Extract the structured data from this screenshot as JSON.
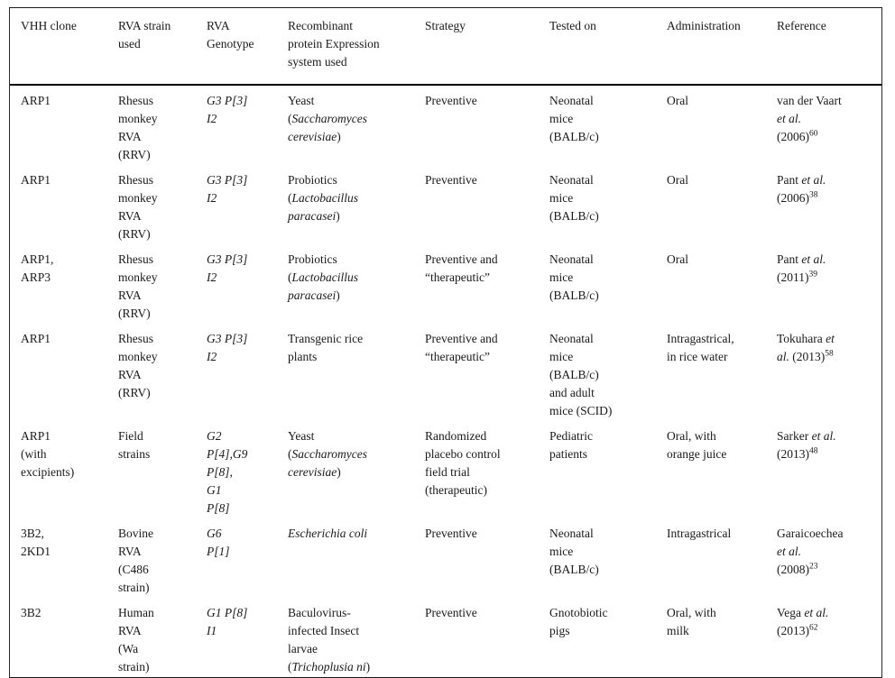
{
  "table": {
    "columns": [
      "VHH clone",
      "RVA strain\nused",
      "RVA\nGenotype",
      "Recombinant\nprotein Expression\nsystem used",
      "Strategy",
      "Tested on",
      "Administration",
      "Reference"
    ],
    "rows": [
      {
        "cells": [
          [
            "ARP1"
          ],
          [
            "Rhesus\nmonkey\nRVA\n(RRV)"
          ],
          [
            {
              "i": "G3 P[3]\nI2"
            }
          ],
          [
            "Yeast\n(",
            {
              "i": "Saccharomyces\ncerevisiae"
            },
            ")"
          ],
          [
            "Preventive"
          ],
          [
            "Neonatal\nmice\n(BALB/c)"
          ],
          [
            "Oral"
          ],
          [
            "van der Vaart\n",
            {
              "i": "et al."
            },
            "\n(2006)",
            {
              "s": "60"
            }
          ]
        ]
      },
      {
        "cells": [
          [
            "ARP1"
          ],
          [
            "Rhesus\nmonkey\nRVA\n(RRV)"
          ],
          [
            {
              "i": "G3 P[3]\nI2"
            }
          ],
          [
            "Probiotics\n(",
            {
              "i": "Lactobacillus\nparacasei"
            },
            ")"
          ],
          [
            "Preventive"
          ],
          [
            "Neonatal\nmice\n(BALB/c)"
          ],
          [
            "Oral"
          ],
          [
            "Pant ",
            {
              "i": "et al."
            },
            "\n(2006)",
            {
              "s": "38"
            }
          ]
        ]
      },
      {
        "cells": [
          [
            "ARP1,\nARP3"
          ],
          [
            "Rhesus\nmonkey\nRVA\n(RRV)"
          ],
          [
            {
              "i": "G3 P[3]\nI2"
            }
          ],
          [
            "Probiotics\n(",
            {
              "i": "Lactobacillus\nparacasei"
            },
            ")"
          ],
          [
            "Preventive and\n“therapeutic”"
          ],
          [
            "Neonatal\nmice\n(BALB/c)"
          ],
          [
            "Oral"
          ],
          [
            "Pant ",
            {
              "i": "et al."
            },
            "\n(2011)",
            {
              "s": "39"
            }
          ]
        ]
      },
      {
        "cells": [
          [
            "ARP1"
          ],
          [
            "Rhesus\nmonkey\nRVA\n(RRV)"
          ],
          [
            {
              "i": "G3 P[3]\nI2"
            }
          ],
          [
            "Transgenic rice\nplants"
          ],
          [
            "Preventive and\n“therapeutic”"
          ],
          [
            "Neonatal\nmice\n(BALB/c)\nand adult\nmice (SCID)"
          ],
          [
            "Intragastrical,\nin rice water"
          ],
          [
            "Tokuhara ",
            {
              "i": "et\nal."
            },
            " (2013)",
            {
              "s": "58"
            }
          ]
        ]
      },
      {
        "cells": [
          [
            "ARP1\n(with\nexcipients)"
          ],
          [
            "Field\nstrains"
          ],
          [
            {
              "i": "G2\nP[4],G9\nP[8],\nG1\nP[8]"
            }
          ],
          [
            "Yeast\n(",
            {
              "i": "Saccharomyces\ncerevisiae"
            },
            ")"
          ],
          [
            "Randomized\nplacebo control\nfield trial\n(therapeutic)"
          ],
          [
            "Pediatric\npatients"
          ],
          [
            "Oral, with\norange juice"
          ],
          [
            "Sarker ",
            {
              "i": "et al."
            },
            "\n(2013)",
            {
              "s": "48"
            }
          ]
        ]
      },
      {
        "cells": [
          [
            "3B2,\n2KD1"
          ],
          [
            "Bovine\nRVA\n(C486\nstrain)"
          ],
          [
            {
              "i": "G6\nP[1]"
            }
          ],
          [
            {
              "i": "Escherichia coli"
            }
          ],
          [
            "Preventive"
          ],
          [
            "Neonatal\nmice\n(BALB/c)"
          ],
          [
            "Intragastrical"
          ],
          [
            "Garaicoechea\n",
            {
              "i": "et al."
            },
            "\n(2008)",
            {
              "s": "23"
            }
          ]
        ]
      },
      {
        "cells": [
          [
            "3B2"
          ],
          [
            "Human\nRVA\n(Wa\nstrain)"
          ],
          [
            {
              "i": "G1 P[8]\nI1"
            }
          ],
          [
            "Baculovirus-\ninfected Insect\nlarvae\n(",
            {
              "i": "Trichoplusia ni"
            },
            ")"
          ],
          [
            "Preventive"
          ],
          [
            "Gnotobiotic\npigs"
          ],
          [
            "Oral, with\nmilk"
          ],
          [
            "Vega ",
            {
              "i": "et al."
            },
            "\n(2013)",
            {
              "s": "62"
            }
          ]
        ]
      }
    ]
  }
}
